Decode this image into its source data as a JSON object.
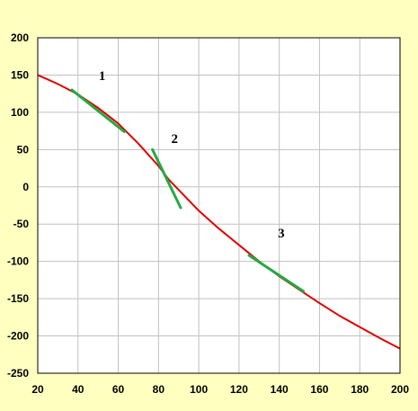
{
  "colors": {
    "page_background": "#ffffc0",
    "plot_background": "#ffffff",
    "grid": "#c0c0c0",
    "axis": "#000000",
    "curve": "#e00000",
    "tangent": "#22aa44"
  },
  "chart_data": {
    "type": "line",
    "title": "",
    "xlabel": "",
    "ylabel": "",
    "xlim": [
      20,
      200
    ],
    "ylim": [
      -250,
      200
    ],
    "grid": true,
    "x_ticks": [
      20,
      40,
      60,
      80,
      100,
      120,
      140,
      160,
      180,
      200
    ],
    "y_ticks": [
      200,
      150,
      100,
      50,
      0,
      -50,
      -100,
      -150,
      -200,
      -250
    ],
    "series": [
      {
        "kind": "curve",
        "x": [
          20,
          30,
          40,
          50,
          60,
          70,
          80,
          85,
          90,
          100,
          110,
          120,
          130,
          140,
          150,
          160,
          170,
          180,
          190,
          200
        ],
        "y": [
          150,
          138,
          124,
          106,
          85,
          58,
          28,
          10,
          -4,
          -32,
          -56,
          -78,
          -100,
          -120,
          -138,
          -156,
          -173,
          -188,
          -203,
          -217
        ]
      },
      {
        "kind": "tangent",
        "x": [
          37,
          63
        ],
        "y": [
          130,
          74
        ]
      },
      {
        "kind": "tangent",
        "x": [
          77,
          91
        ],
        "y": [
          50,
          -28
        ]
      },
      {
        "kind": "tangent",
        "x": [
          125,
          152
        ],
        "y": [
          -92,
          -140
        ]
      }
    ],
    "annotations": [
      {
        "text": "1",
        "x": 52,
        "y": 143
      },
      {
        "text": "2",
        "x": 88,
        "y": 59
      },
      {
        "text": "3",
        "x": 141,
        "y": -68
      }
    ]
  }
}
